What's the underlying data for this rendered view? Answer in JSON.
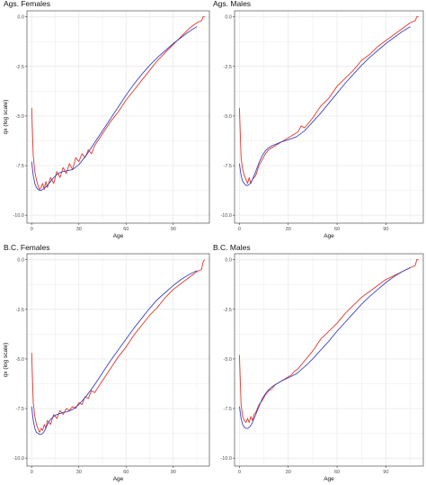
{
  "colors": {
    "observed": "#e0382b",
    "fitted": "#3b44c2",
    "grid": "#ebebeb",
    "frame": "#333333"
  },
  "chart_data": [
    {
      "type": "line",
      "title": "Ags. Females",
      "xlabel": "Age",
      "ylabel": "qx (log scale)",
      "xlim": [
        -3,
        113
      ],
      "ylim": [
        -10.4,
        0.3
      ],
      "xticks": [
        0,
        30,
        60,
        90
      ],
      "yticks": [
        0.0,
        -2.5,
        -5.0,
        -7.5,
        -10.0
      ],
      "ytick_labels": [
        "0.0",
        "-2.5",
        "-5.0",
        "-7.5",
        "-10.0"
      ],
      "grid": true,
      "series": [
        {
          "color": "#e0382b",
          "x": [
            0,
            1,
            2,
            3,
            4,
            5,
            6,
            7,
            8,
            9,
            10,
            12,
            14,
            16,
            18,
            20,
            22,
            24,
            26,
            28,
            30,
            32,
            34,
            36,
            38,
            40,
            45,
            50,
            55,
            60,
            65,
            70,
            75,
            80,
            85,
            90,
            95,
            100,
            105,
            108,
            109,
            110
          ],
          "y": [
            -4.6,
            -7.0,
            -7.8,
            -8.2,
            -8.5,
            -8.7,
            -8.6,
            -8.4,
            -8.7,
            -8.3,
            -8.6,
            -8.1,
            -8.4,
            -7.8,
            -8.1,
            -7.6,
            -7.9,
            -7.4,
            -7.7,
            -7.1,
            -7.3,
            -6.9,
            -7.1,
            -6.7,
            -6.9,
            -6.5,
            -5.9,
            -5.3,
            -4.8,
            -4.2,
            -3.7,
            -3.2,
            -2.7,
            -2.2,
            -1.8,
            -1.4,
            -1.0,
            -0.6,
            -0.3,
            -0.2,
            0.0,
            0.0
          ]
        },
        {
          "color": "#3b44c2",
          "x": [
            0,
            1,
            2,
            3,
            4,
            5,
            6,
            7,
            8,
            10,
            12,
            14,
            16,
            18,
            20,
            23,
            26,
            30,
            35,
            40,
            45,
            50,
            55,
            60,
            65,
            70,
            75,
            80,
            85,
            90,
            95,
            100,
            105
          ],
          "y": [
            -7.3,
            -8.0,
            -8.4,
            -8.6,
            -8.7,
            -8.75,
            -8.75,
            -8.7,
            -8.65,
            -8.5,
            -8.3,
            -8.1,
            -7.95,
            -7.85,
            -7.8,
            -7.75,
            -7.7,
            -7.45,
            -6.95,
            -6.35,
            -5.75,
            -5.15,
            -4.55,
            -3.95,
            -3.4,
            -2.9,
            -2.45,
            -2.05,
            -1.7,
            -1.35,
            -1.05,
            -0.75,
            -0.5
          ]
        }
      ]
    },
    {
      "type": "line",
      "title": "Ags. Males",
      "xlabel": "Age",
      "ylabel": "",
      "xlim": [
        -3,
        113
      ],
      "ylim": [
        -10.4,
        0.3
      ],
      "xticks": [
        0,
        30,
        60,
        90
      ],
      "yticks": [
        0.0,
        -2.5,
        -5.0,
        -7.5,
        -10.0
      ],
      "ytick_labels": [
        "0.0",
        "-2.5",
        "-5.0",
        "-7.5",
        "-10.0"
      ],
      "grid": true,
      "series": [
        {
          "color": "#e0382b",
          "x": [
            0,
            1,
            2,
            3,
            4,
            5,
            6,
            7,
            8,
            10,
            12,
            14,
            16,
            18,
            20,
            22,
            24,
            26,
            28,
            30,
            32,
            34,
            36,
            38,
            40,
            45,
            50,
            55,
            60,
            65,
            70,
            75,
            80,
            85,
            90,
            95,
            100,
            105,
            108,
            109,
            110
          ],
          "y": [
            -4.6,
            -7.1,
            -7.7,
            -8.0,
            -8.2,
            -8.4,
            -8.1,
            -8.4,
            -8.2,
            -8.0,
            -7.5,
            -7.2,
            -6.9,
            -6.7,
            -6.6,
            -6.5,
            -6.4,
            -6.3,
            -6.2,
            -6.1,
            -6.0,
            -5.9,
            -5.8,
            -5.5,
            -5.6,
            -5.1,
            -4.5,
            -4.1,
            -3.5,
            -3.1,
            -2.7,
            -2.2,
            -1.9,
            -1.5,
            -1.2,
            -0.9,
            -0.6,
            -0.3,
            -0.2,
            0.0,
            0.0
          ]
        },
        {
          "color": "#3b44c2",
          "x": [
            0,
            1,
            2,
            3,
            4,
            5,
            6,
            7,
            8,
            10,
            12,
            14,
            16,
            18,
            20,
            23,
            26,
            30,
            35,
            40,
            45,
            50,
            55,
            60,
            65,
            70,
            75,
            80,
            85,
            90,
            95,
            100,
            105
          ],
          "y": [
            -7.4,
            -8.0,
            -8.3,
            -8.4,
            -8.5,
            -8.5,
            -8.45,
            -8.35,
            -8.2,
            -7.8,
            -7.35,
            -7.0,
            -6.75,
            -6.6,
            -6.5,
            -6.4,
            -6.3,
            -6.2,
            -6.05,
            -5.75,
            -5.3,
            -4.85,
            -4.35,
            -3.85,
            -3.35,
            -2.9,
            -2.45,
            -2.05,
            -1.7,
            -1.35,
            -1.05,
            -0.75,
            -0.5
          ]
        }
      ]
    },
    {
      "type": "line",
      "title": "B.C. Females",
      "xlabel": "Age",
      "ylabel": "qx (log scale)",
      "xlim": [
        -3,
        113
      ],
      "ylim": [
        -10.4,
        0.3
      ],
      "xticks": [
        0,
        30,
        60,
        90
      ],
      "yticks": [
        0.0,
        -2.5,
        -5.0,
        -7.5,
        -10.0
      ],
      "ytick_labels": [
        "0.0",
        "-2.5",
        "-5.0",
        "-7.5",
        "-10.0"
      ],
      "grid": true,
      "series": [
        {
          "color": "#e0382b",
          "x": [
            0,
            1,
            2,
            3,
            4,
            5,
            6,
            7,
            8,
            9,
            10,
            12,
            14,
            16,
            18,
            20,
            22,
            24,
            26,
            28,
            30,
            32,
            34,
            36,
            38,
            40,
            45,
            50,
            55,
            60,
            65,
            70,
            75,
            80,
            85,
            90,
            95,
            100,
            105,
            108,
            109,
            110
          ],
          "y": [
            -4.7,
            -7.2,
            -7.9,
            -8.3,
            -8.5,
            -8.7,
            -8.5,
            -8.6,
            -8.3,
            -8.5,
            -8.1,
            -8.3,
            -7.8,
            -8.0,
            -7.6,
            -7.8,
            -7.5,
            -7.6,
            -7.4,
            -7.5,
            -7.2,
            -7.3,
            -6.9,
            -7.0,
            -6.6,
            -6.7,
            -6.1,
            -5.5,
            -4.9,
            -4.4,
            -3.8,
            -3.3,
            -2.8,
            -2.4,
            -1.9,
            -1.5,
            -1.2,
            -0.9,
            -0.6,
            -0.5,
            -0.1,
            0.0
          ]
        },
        {
          "color": "#3b44c2",
          "x": [
            0,
            1,
            2,
            3,
            4,
            5,
            6,
            7,
            8,
            9,
            10,
            12,
            14,
            16,
            18,
            20,
            23,
            26,
            30,
            35,
            40,
            45,
            50,
            55,
            60,
            65,
            70,
            75,
            80,
            85,
            90,
            95,
            100,
            105
          ],
          "y": [
            -7.4,
            -8.1,
            -8.5,
            -8.7,
            -8.75,
            -8.8,
            -8.8,
            -8.75,
            -8.65,
            -8.5,
            -8.3,
            -8.05,
            -7.9,
            -7.8,
            -7.75,
            -7.7,
            -7.65,
            -7.55,
            -7.3,
            -6.85,
            -6.3,
            -5.7,
            -5.1,
            -4.55,
            -4.0,
            -3.45,
            -2.95,
            -2.45,
            -2.0,
            -1.65,
            -1.3,
            -1.0,
            -0.75,
            -0.55
          ]
        }
      ]
    },
    {
      "type": "line",
      "title": "B.C. Males",
      "xlabel": "Age",
      "ylabel": "",
      "xlim": [
        -3,
        113
      ],
      "ylim": [
        -10.4,
        0.3
      ],
      "xticks": [
        0,
        30,
        60,
        90
      ],
      "yticks": [
        0.0,
        -2.5,
        -5.0,
        -7.5,
        -10.0
      ],
      "ytick_labels": [
        "0.0",
        "-2.5",
        "-5.0",
        "-7.5",
        "-10.0"
      ],
      "grid": true,
      "series": [
        {
          "color": "#e0382b",
          "x": [
            0,
            1,
            2,
            3,
            4,
            5,
            6,
            7,
            8,
            9,
            10,
            12,
            14,
            16,
            18,
            20,
            22,
            24,
            26,
            28,
            30,
            32,
            34,
            36,
            38,
            40,
            45,
            50,
            55,
            60,
            65,
            70,
            75,
            80,
            85,
            90,
            95,
            100,
            105,
            108,
            109,
            110
          ],
          "y": [
            -4.8,
            -7.3,
            -7.9,
            -8.1,
            -8.2,
            -8.0,
            -8.2,
            -7.9,
            -8.1,
            -7.8,
            -7.7,
            -7.3,
            -7.1,
            -6.8,
            -6.6,
            -6.5,
            -6.3,
            -6.2,
            -6.1,
            -6.0,
            -5.9,
            -5.8,
            -5.6,
            -5.5,
            -5.3,
            -5.1,
            -4.6,
            -4.0,
            -3.6,
            -3.2,
            -2.7,
            -2.3,
            -1.9,
            -1.6,
            -1.3,
            -1.0,
            -0.8,
            -0.6,
            -0.4,
            -0.3,
            0.0,
            0.0
          ]
        },
        {
          "color": "#3b44c2",
          "x": [
            0,
            1,
            2,
            3,
            4,
            5,
            6,
            7,
            8,
            9,
            10,
            12,
            14,
            16,
            18,
            20,
            23,
            26,
            30,
            35,
            40,
            45,
            50,
            55,
            60,
            65,
            70,
            75,
            80,
            85,
            90,
            95,
            100,
            105
          ],
          "y": [
            -7.4,
            -8.0,
            -8.3,
            -8.45,
            -8.5,
            -8.5,
            -8.45,
            -8.35,
            -8.2,
            -8.0,
            -7.8,
            -7.4,
            -7.0,
            -6.75,
            -6.55,
            -6.4,
            -6.25,
            -6.1,
            -5.95,
            -5.75,
            -5.4,
            -5.0,
            -4.55,
            -4.1,
            -3.6,
            -3.15,
            -2.7,
            -2.25,
            -1.85,
            -1.5,
            -1.15,
            -0.85,
            -0.6,
            -0.4
          ]
        }
      ]
    }
  ]
}
